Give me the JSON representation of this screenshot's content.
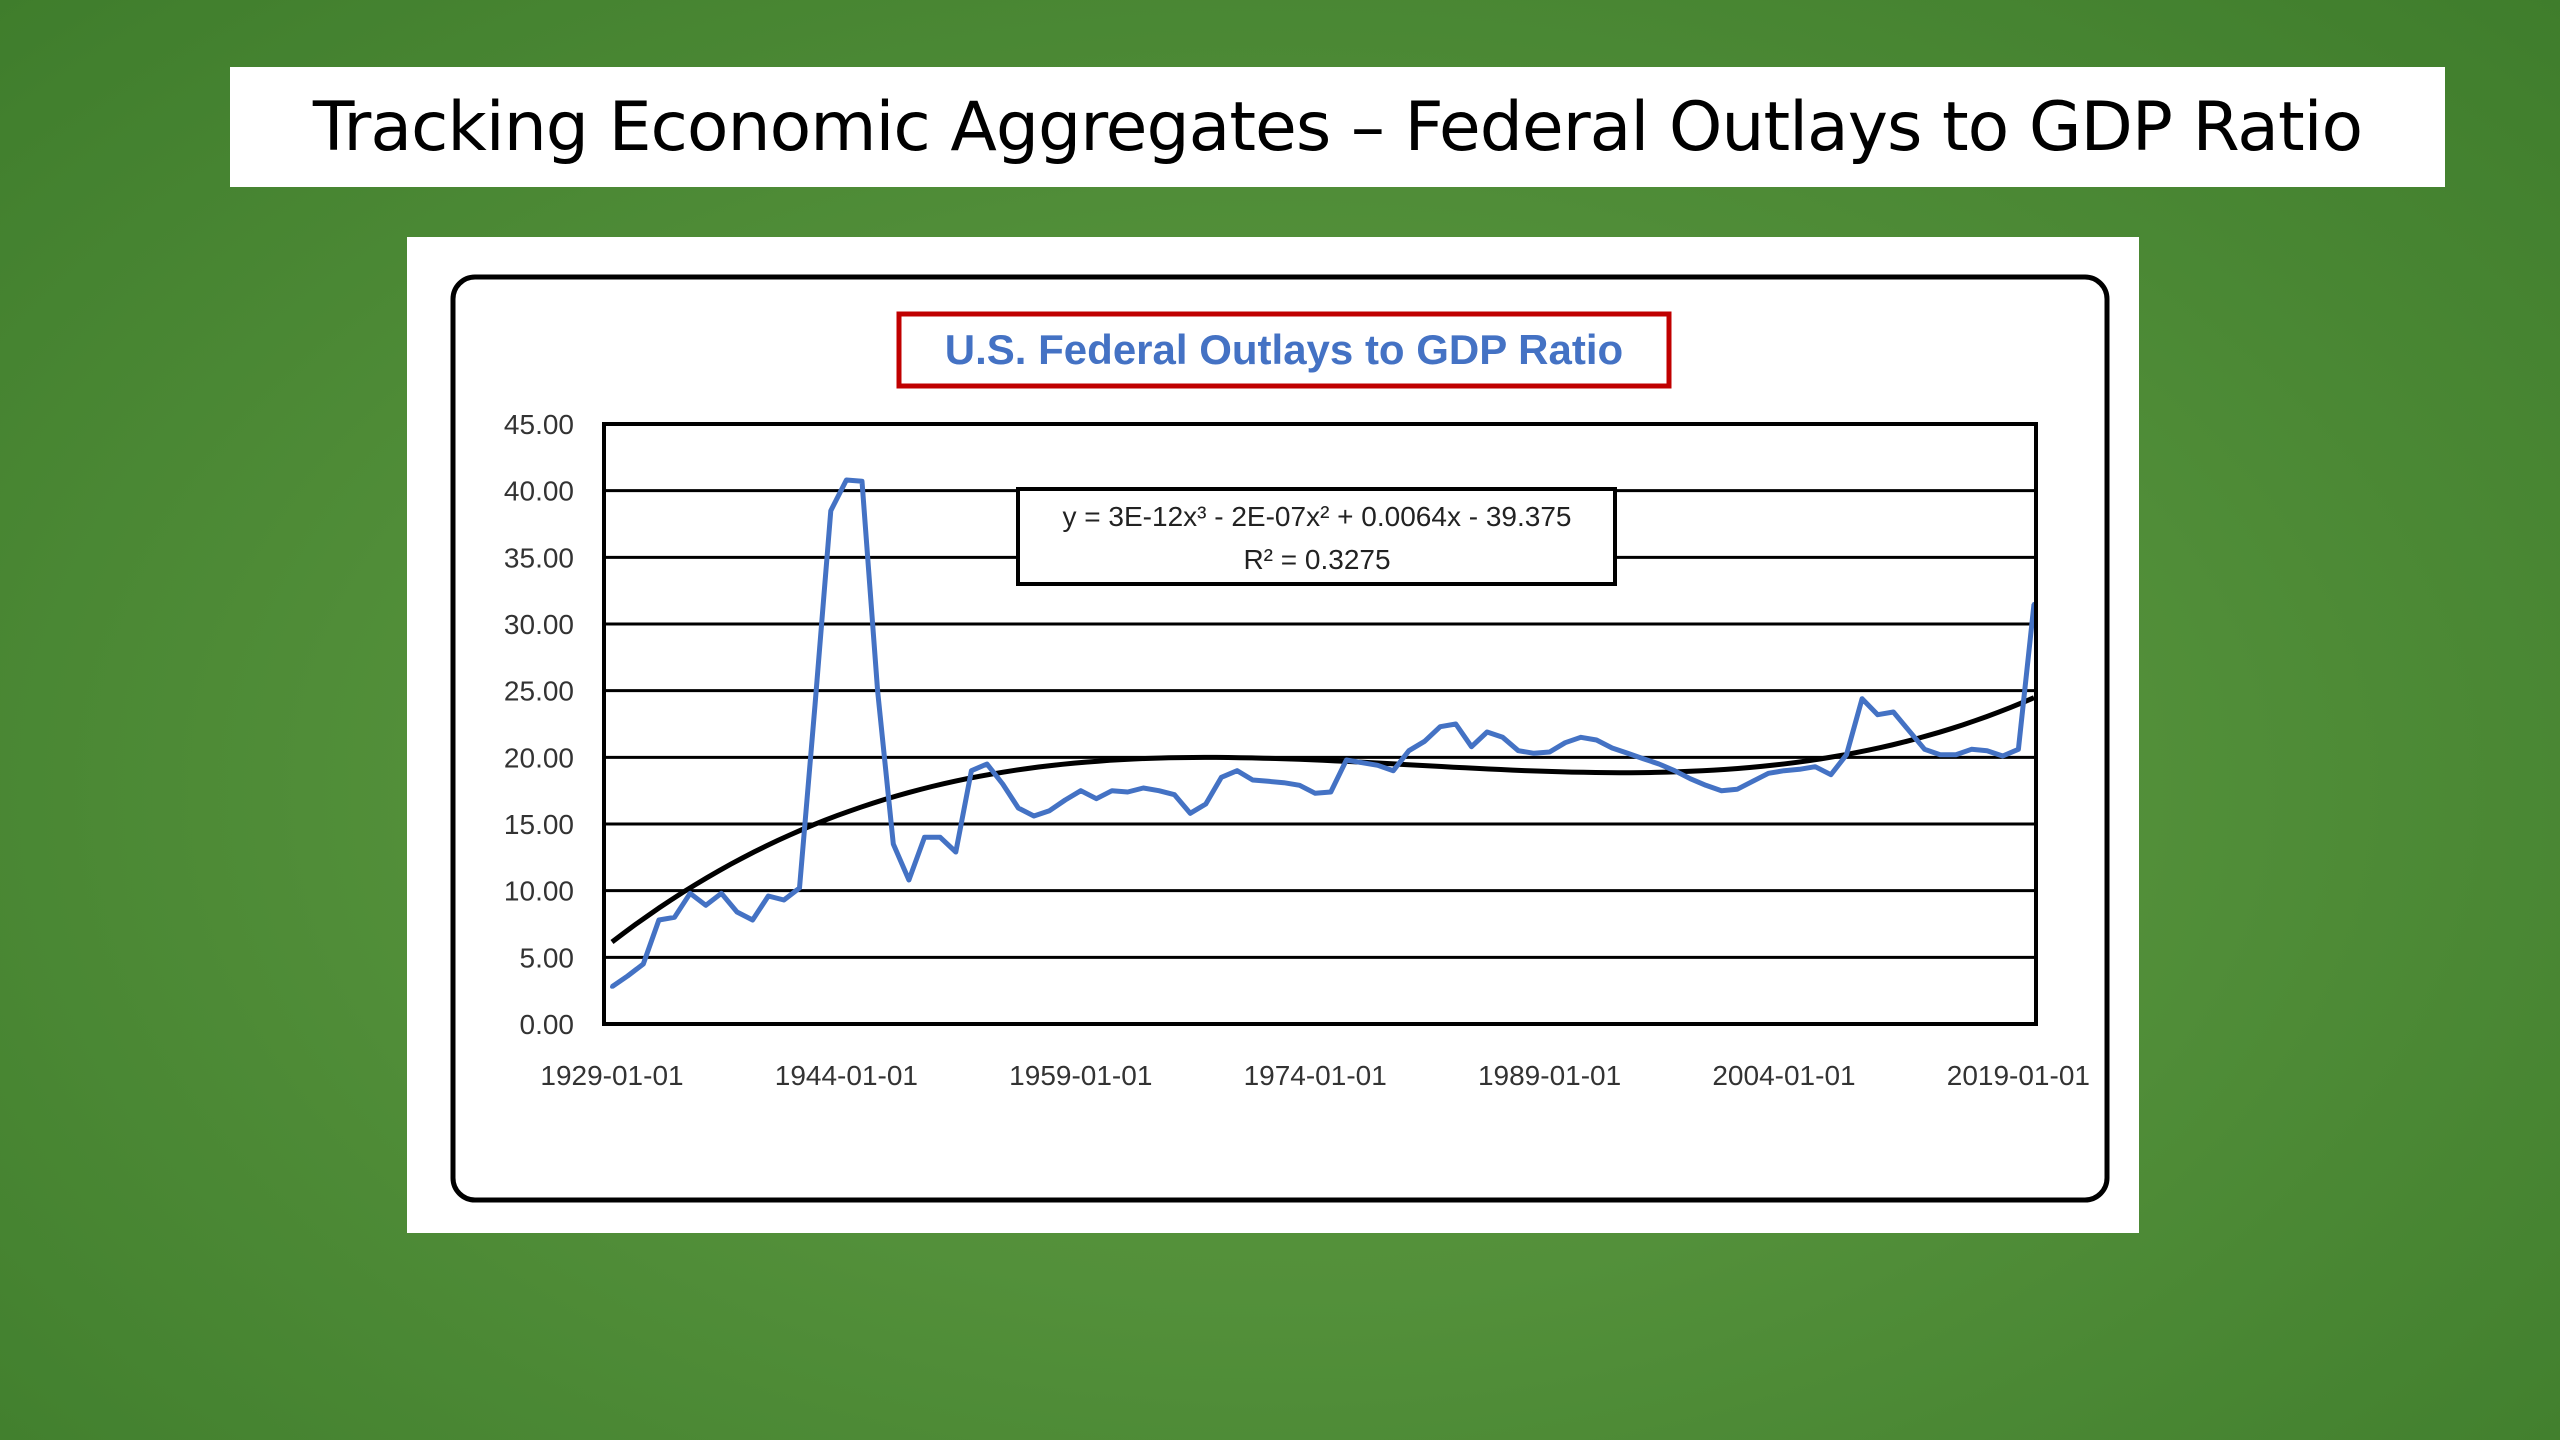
{
  "slide": {
    "title": "Tracking Economic Aggregates – Federal Outlays to GDP Ratio"
  },
  "colors": {
    "background": "#53903a",
    "series_line": "#4472c4",
    "trendline": "#000000",
    "chart_title_text": "#4472c4",
    "chart_title_border": "#c00000"
  },
  "chart_data": {
    "type": "line",
    "title": "U.S. Federal Outlays to GDP Ratio",
    "xlabel": "",
    "ylabel": "",
    "ylim": [
      0,
      45
    ],
    "yticks": [
      "0.00",
      "5.00",
      "10.00",
      "15.00",
      "20.00",
      "25.00",
      "30.00",
      "35.00",
      "40.00",
      "45.00"
    ],
    "xticks": [
      "1929-01-01",
      "1944-01-01",
      "1959-01-01",
      "1974-01-01",
      "1989-01-01",
      "2004-01-01",
      "2019-01-01"
    ],
    "grid": true,
    "legend": "none",
    "trendline": {
      "type": "polynomial (order 3)",
      "equation": "y = 3E-12x³ - 2E-07x² + 0.0064x - 39.375",
      "r_squared": "R² = 0.3275"
    },
    "series": [
      {
        "x": [
          1929,
          1930,
          1931,
          1932,
          1933,
          1934,
          1935,
          1936,
          1937,
          1938,
          1939,
          1940,
          1941,
          1942,
          1943,
          1944,
          1945,
          1946,
          1947,
          1948,
          1949,
          1950,
          1951,
          1952,
          1953,
          1954,
          1955,
          1956,
          1957,
          1958,
          1959,
          1960,
          1961,
          1962,
          1963,
          1964,
          1965,
          1966,
          1967,
          1968,
          1969,
          1970,
          1971,
          1972,
          1973,
          1974,
          1975,
          1976,
          1977,
          1978,
          1979,
          1980,
          1981,
          1982,
          1983,
          1984,
          1985,
          1986,
          1987,
          1988,
          1989,
          1990,
          1991,
          1992,
          1993,
          1994,
          1995,
          1996,
          1997,
          1998,
          1999,
          2000,
          2001,
          2002,
          2003,
          2004,
          2005,
          2006,
          2007,
          2008,
          2009,
          2010,
          2011,
          2012,
          2013,
          2014,
          2015,
          2016,
          2017,
          2018,
          2019,
          2020
        ],
        "values": [
          2.8,
          3.6,
          4.5,
          7.8,
          8.0,
          9.8,
          8.9,
          9.8,
          8.4,
          7.8,
          9.6,
          9.3,
          10.2,
          24.0,
          38.5,
          40.8,
          40.7,
          25.0,
          13.5,
          10.8,
          14.0,
          14.0,
          12.9,
          19.0,
          19.5,
          18.0,
          16.2,
          15.6,
          16.0,
          16.8,
          17.5,
          16.9,
          17.5,
          17.4,
          17.7,
          17.5,
          17.2,
          15.8,
          16.5,
          18.5,
          19.0,
          18.3,
          18.2,
          18.1,
          17.9,
          17.3,
          17.4,
          19.8,
          19.6,
          19.4,
          19.0,
          20.5,
          21.2,
          22.3,
          22.5,
          20.8,
          21.9,
          21.5,
          20.5,
          20.3,
          20.4,
          21.1,
          21.5,
          21.3,
          20.7,
          20.3,
          19.9,
          19.5,
          19.0,
          18.4,
          17.9,
          17.5,
          17.6,
          18.2,
          18.8,
          19.0,
          19.1,
          19.3,
          18.7,
          20.2,
          24.4,
          23.2,
          23.4,
          22.0,
          20.6,
          20.2,
          20.2,
          20.6,
          20.5,
          20.1,
          20.6,
          31.5
        ]
      }
    ]
  }
}
